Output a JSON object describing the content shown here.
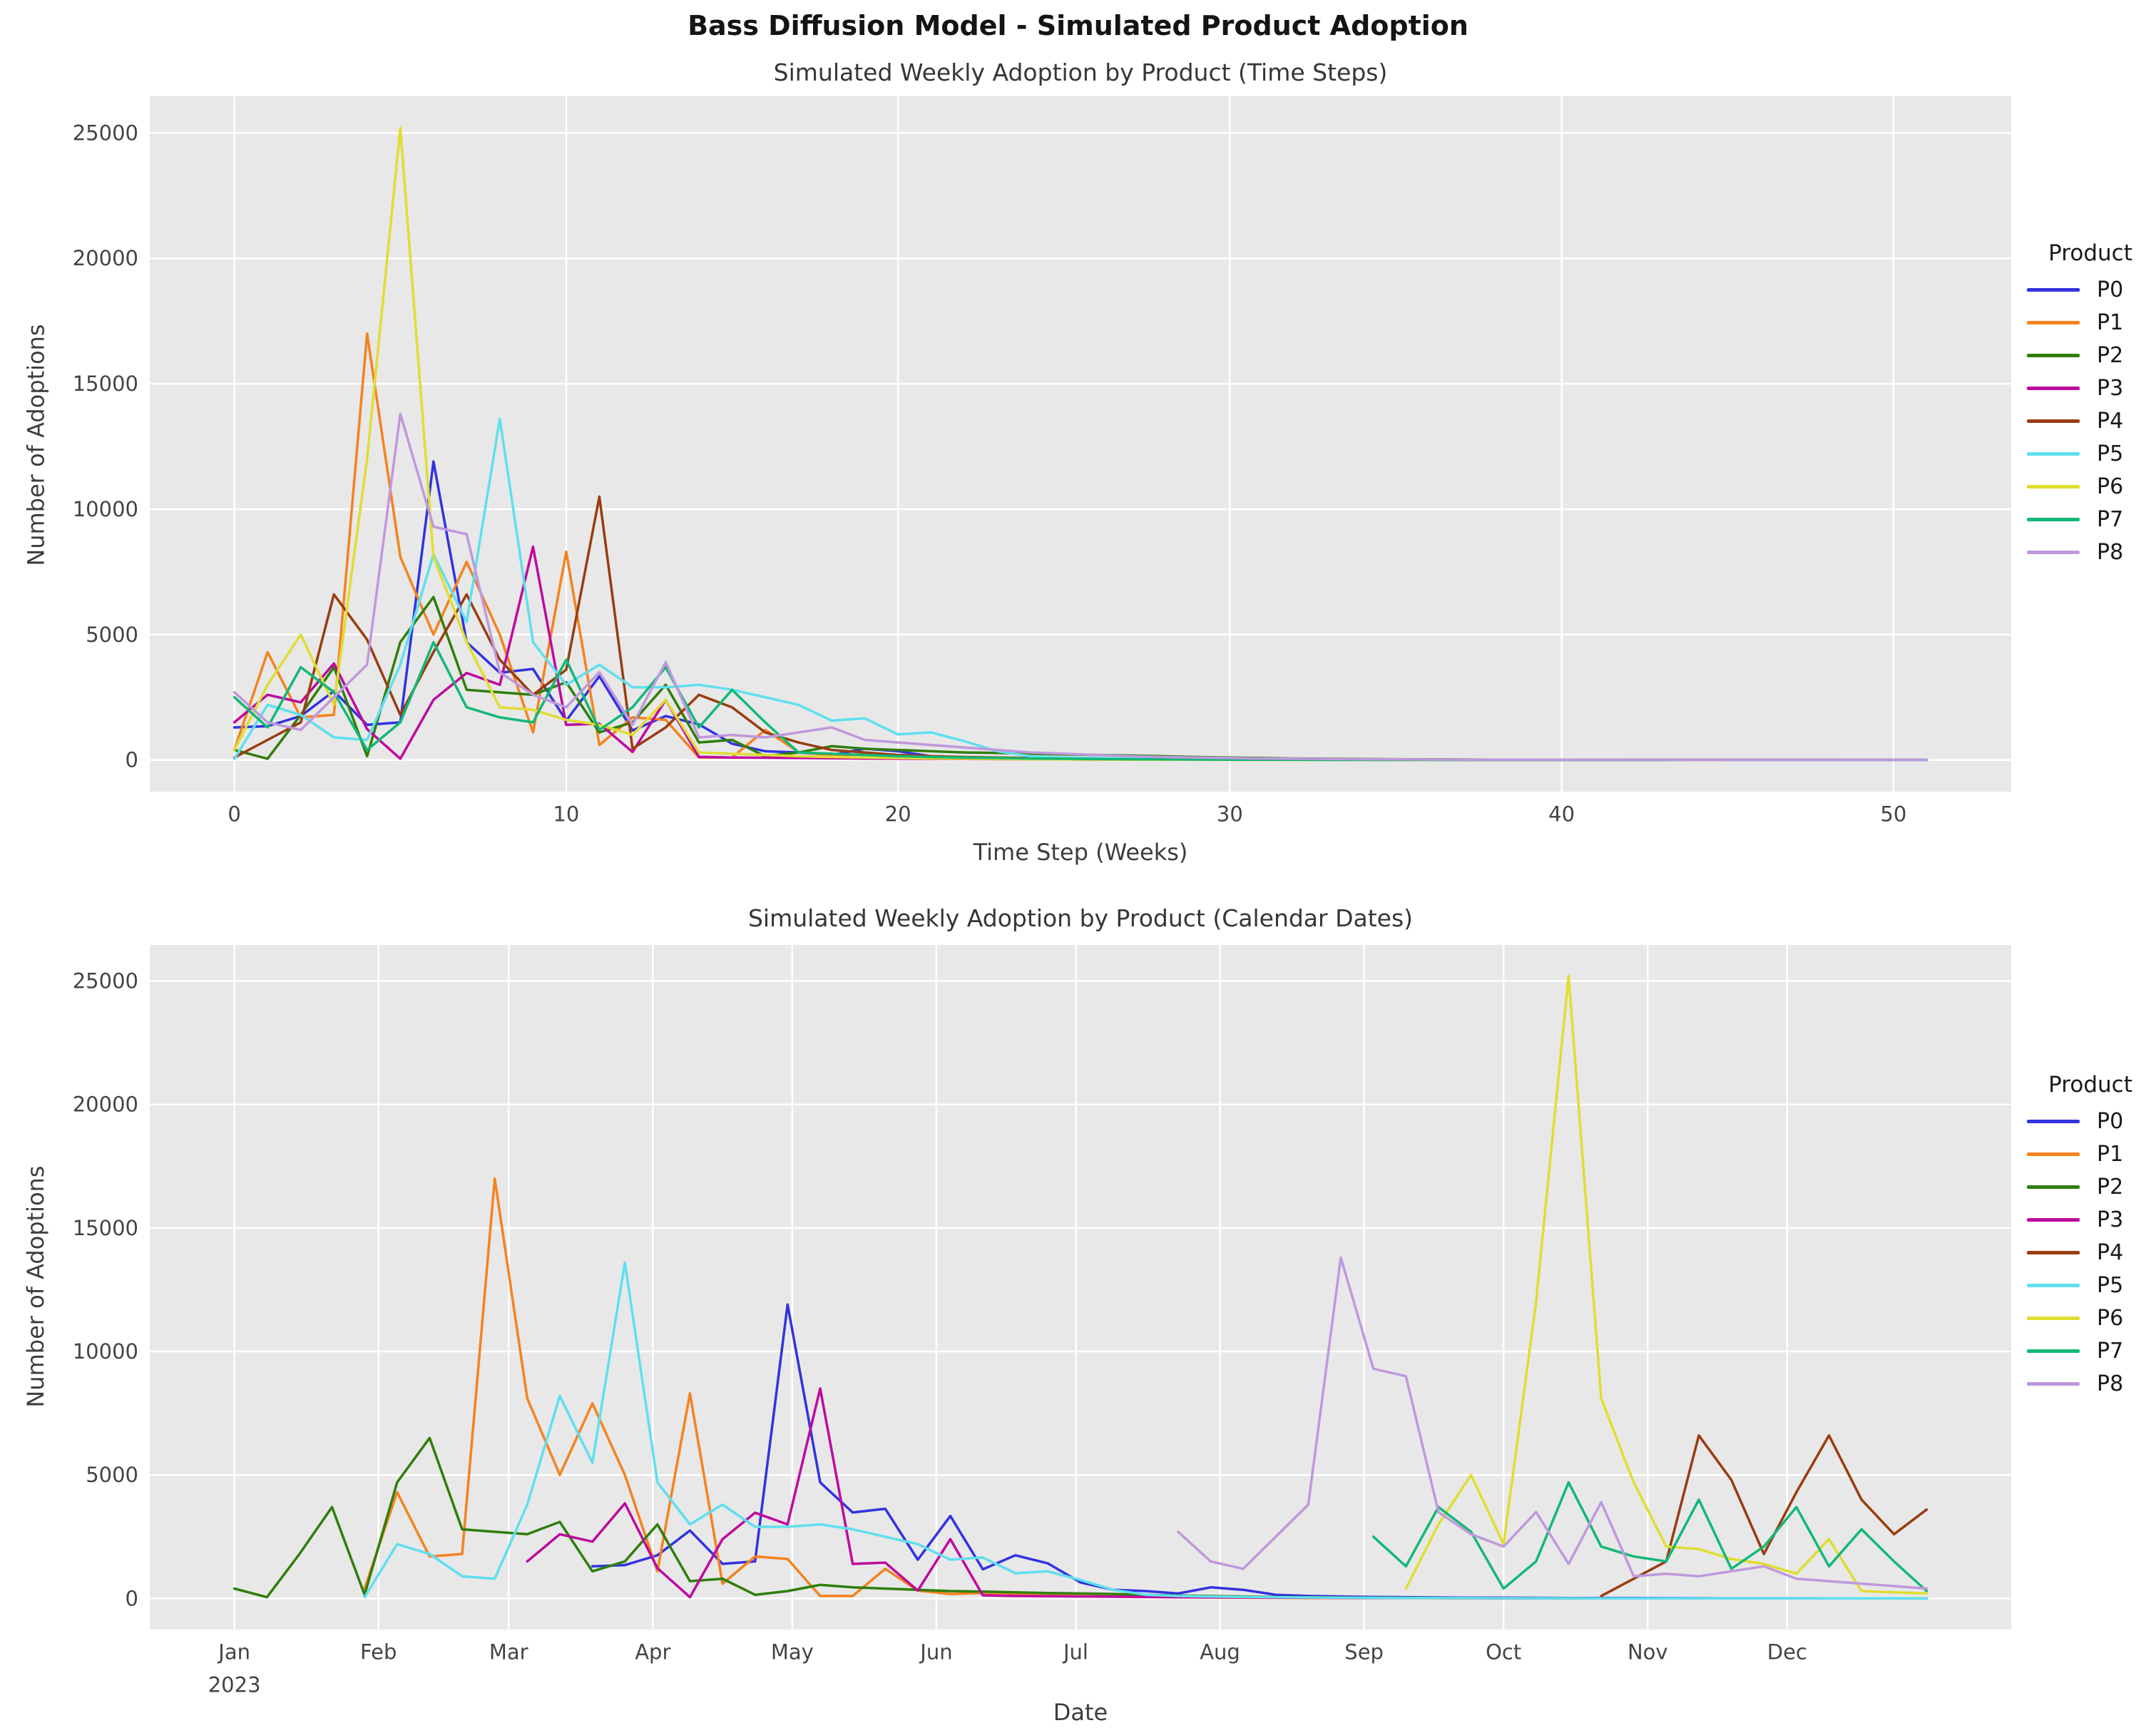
{
  "title": "Bass Diffusion Model - Simulated Product Adoption",
  "legend_title": "Product",
  "chart_data": {
    "type": "line",
    "n_weeks": 52,
    "legend_title": "Product",
    "series": [
      {
        "name": "P0",
        "color": "#3232e0",
        "start_day_of_year": 77,
        "weekly_values": [
          1300,
          1350,
          1750,
          2750,
          1400,
          1500,
          11900,
          4700,
          3480,
          3630,
          1570,
          3340,
          1180,
          1750,
          1420,
          650,
          350,
          300,
          200,
          450,
          350,
          150,
          100,
          80,
          60,
          50,
          40,
          35,
          30,
          25,
          20,
          18,
          15,
          12,
          10,
          9,
          8,
          7,
          6,
          5,
          5,
          4,
          4,
          3,
          3,
          2,
          2,
          2,
          1,
          1,
          1,
          1
        ]
      },
      {
        "name": "P1",
        "color": "#f5821f",
        "start_day_of_year": 28,
        "weekly_values": [
          400,
          4300,
          1700,
          1800,
          17000,
          8100,
          5000,
          7900,
          5000,
          1100,
          8300,
          600,
          1700,
          1600,
          100,
          100,
          1200,
          320,
          180,
          220,
          200,
          150,
          100,
          80,
          60,
          50,
          40,
          30,
          25,
          20,
          18,
          15,
          12,
          10,
          9,
          8,
          7,
          6,
          5,
          5,
          4,
          4,
          3,
          3,
          2,
          2,
          2,
          1,
          1,
          1,
          1,
          1
        ]
      },
      {
        "name": "P2",
        "color": "#2f7e0c",
        "start_day_of_year": 0,
        "weekly_values": [
          400,
          50,
          1800,
          3700,
          150,
          4700,
          6500,
          2800,
          2700,
          2600,
          3100,
          1100,
          1500,
          3000,
          700,
          800,
          150,
          300,
          550,
          450,
          400,
          350,
          300,
          280,
          250,
          220,
          200,
          180,
          150,
          120,
          100,
          80,
          60,
          50,
          40,
          30,
          25,
          20,
          15,
          12,
          10,
          8,
          6,
          5,
          4,
          3,
          3,
          2,
          2,
          1,
          1,
          1
        ]
      },
      {
        "name": "P3",
        "color": "#be0a9e",
        "start_day_of_year": 63,
        "weekly_values": [
          1500,
          2600,
          2300,
          3850,
          1230,
          50,
          2400,
          3470,
          3000,
          8500,
          1400,
          1450,
          320,
          2400,
          125,
          100,
          90,
          80,
          70,
          60,
          50,
          45,
          40,
          35,
          30,
          25,
          20,
          18,
          15,
          12,
          10,
          9,
          8,
          7,
          6,
          5,
          5,
          4,
          4,
          3,
          3,
          2,
          2,
          2,
          1,
          1,
          1,
          1,
          1,
          0,
          0,
          0
        ]
      },
      {
        "name": "P4",
        "color": "#993c10",
        "start_day_of_year": 294,
        "weekly_values": [
          100,
          800,
          1500,
          6600,
          4800,
          1800,
          4300,
          6600,
          4000,
          2600,
          3600,
          10500,
          450,
          1300,
          2600,
          2100,
          1100,
          700,
          400,
          300,
          200,
          150,
          120,
          100,
          80,
          60,
          50,
          40,
          35,
          30,
          25,
          20,
          18,
          15,
          12,
          10,
          9,
          8,
          7,
          6,
          5,
          5,
          4,
          4,
          3,
          3,
          2,
          2,
          2,
          1,
          1,
          1
        ]
      },
      {
        "name": "P5",
        "color": "#5fdfef",
        "start_day_of_year": 28,
        "weekly_values": [
          50,
          2200,
          1800,
          900,
          800,
          3800,
          8200,
          5500,
          13600,
          4700,
          3000,
          3800,
          2900,
          2900,
          3000,
          2800,
          2500,
          2200,
          1570,
          1660,
          1020,
          1100,
          750,
          350,
          150,
          100,
          80,
          60,
          50,
          40,
          30,
          25,
          20,
          15,
          12,
          10,
          8,
          7,
          6,
          5,
          4,
          4,
          3,
          3,
          2,
          2,
          2,
          1,
          1,
          1,
          1,
          1
        ]
      },
      {
        "name": "P6",
        "color": "#e0dd30",
        "start_day_of_year": 252,
        "weekly_values": [
          400,
          3000,
          5000,
          2200,
          12000,
          25200,
          8100,
          4700,
          2100,
          2000,
          1600,
          1400,
          1000,
          2400,
          300,
          250,
          200,
          150,
          120,
          100,
          80,
          60,
          50,
          40,
          30,
          25,
          20,
          15,
          12,
          10,
          8,
          6,
          5,
          4,
          3,
          3,
          2,
          2,
          1,
          1,
          1,
          1,
          0,
          0,
          0,
          0,
          0,
          0,
          0,
          0,
          0,
          0
        ]
      },
      {
        "name": "P7",
        "color": "#12b877",
        "start_day_of_year": 245,
        "weekly_values": [
          2500,
          1300,
          3700,
          2700,
          400,
          1500,
          4700,
          2100,
          1700,
          1500,
          4000,
          1200,
          2100,
          3700,
          1300,
          2800,
          1500,
          300,
          250,
          200,
          150,
          120,
          100,
          80,
          60,
          50,
          40,
          30,
          25,
          20,
          15,
          12,
          10,
          8,
          6,
          5,
          4,
          3,
          3,
          2,
          2,
          1,
          1,
          1,
          1,
          0,
          0,
          0,
          0,
          0,
          0,
          0
        ]
      },
      {
        "name": "P8",
        "color": "#bf98dd",
        "start_day_of_year": 203,
        "weekly_values": [
          2700,
          1500,
          1200,
          2500,
          3800,
          13800,
          9300,
          9000,
          3500,
          2600,
          2100,
          3500,
          1400,
          3900,
          900,
          1000,
          900,
          1100,
          1300,
          800,
          700,
          600,
          500,
          400,
          300,
          250,
          200,
          150,
          120,
          100,
          80,
          60,
          50,
          40,
          30,
          25,
          20,
          15,
          12,
          10,
          8,
          6,
          5,
          4,
          3,
          3,
          2,
          2,
          1,
          1,
          1,
          1
        ]
      }
    ],
    "charts": [
      {
        "title": "Simulated Weekly Adoption by Product (Time Steps)",
        "xlabel": "Time Step (Weeks)",
        "ylabel": "Number of Adoptions",
        "x_mode": "weeks",
        "x_ticks": [
          0,
          10,
          20,
          30,
          40,
          50
        ],
        "y_ticks": [
          0,
          5000,
          10000,
          15000,
          20000,
          25000
        ],
        "xlim": [
          -2.55,
          53.55
        ],
        "ylim": [
          -1260,
          26460
        ],
        "grid": true,
        "legend_position": "right"
      },
      {
        "title": "Simulated Weekly Adoption by Product (Calendar Dates)",
        "xlabel": "Date",
        "ylabel": "Number of Adoptions",
        "x_mode": "dates",
        "x_ticks_months": [
          "Jan",
          "Feb",
          "Mar",
          "Apr",
          "May",
          "Jun",
          "Jul",
          "Aug",
          "Sep",
          "Oct",
          "Nov",
          "Dec"
        ],
        "x_tick_year": "2023",
        "month_start_days": [
          0,
          31,
          59,
          90,
          120,
          151,
          181,
          212,
          243,
          273,
          304,
          334
        ],
        "y_ticks": [
          0,
          5000,
          10000,
          15000,
          20000,
          25000
        ],
        "xlim_days": [
          -18.2,
          382.2
        ],
        "ylim": [
          -1260,
          26460
        ],
        "grid": true,
        "legend_position": "right"
      }
    ]
  }
}
